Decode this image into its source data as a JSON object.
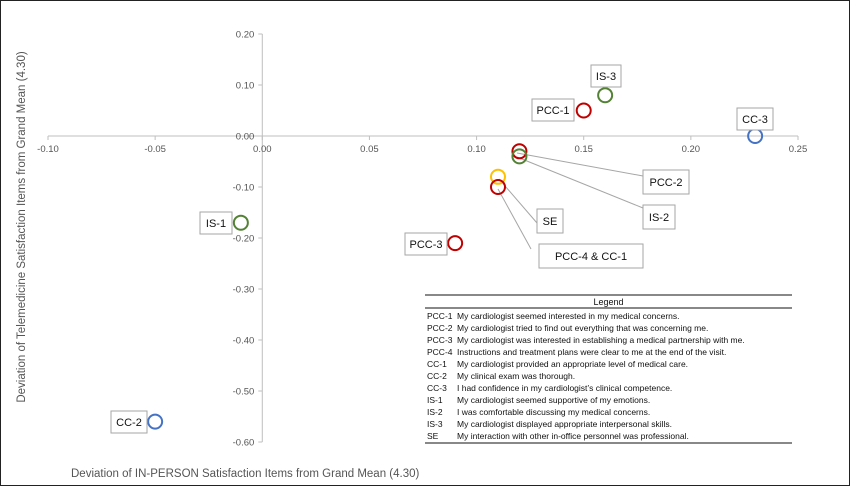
{
  "chart_data": {
    "type": "scatter",
    "xlabel": "Deviation of IN-PERSON Satisfaction Items from Grand Mean (4.30)",
    "ylabel": "Deviation of Telemedicine Satisfaction Items from Grand Mean (4.30)",
    "xlim": [
      -0.1,
      0.25
    ],
    "ylim": [
      -0.6,
      0.2
    ],
    "x_ticks": [
      "-0.10",
      "-0.05",
      "0.00",
      "0.05",
      "0.10",
      "0.15",
      "0.20",
      "0.25"
    ],
    "y_ticks": [
      "0.20",
      "0.10",
      "0.00",
      "-0.10",
      "-0.20",
      "-0.30",
      "-0.40",
      "-0.50",
      "-0.60"
    ],
    "points": [
      {
        "label": "IS-3",
        "x": 0.16,
        "y": 0.08,
        "color": "#548235"
      },
      {
        "label": "PCC-1",
        "x": 0.15,
        "y": 0.05,
        "color": "#c00000"
      },
      {
        "label": "CC-3",
        "x": 0.23,
        "y": 0.0,
        "color": "#4472c4"
      },
      {
        "label": "PCC-2",
        "x": 0.12,
        "y": -0.03,
        "color": "#c00000"
      },
      {
        "label": "IS-2",
        "x": 0.12,
        "y": -0.04,
        "color": "#548235"
      },
      {
        "label": "SE",
        "x": 0.11,
        "y": -0.08,
        "color": "#ffc000"
      },
      {
        "label": "PCC-4 & CC-1",
        "x": 0.11,
        "y": -0.1,
        "color": "#c00000"
      },
      {
        "label": "IS-1",
        "x": -0.01,
        "y": -0.17,
        "color": "#548235"
      },
      {
        "label": "PCC-3",
        "x": 0.09,
        "y": -0.21,
        "color": "#c00000"
      },
      {
        "label": "CC-2",
        "x": -0.05,
        "y": -0.56,
        "color": "#4472c4"
      }
    ],
    "legend": {
      "title": "Legend",
      "items": [
        {
          "code": "PCC-1",
          "text": "My cardiologist seemed interested in my medical concerns."
        },
        {
          "code": "PCC-2",
          "text": "My cardiologist tried to find out everything that was concerning me."
        },
        {
          "code": "PCC-3",
          "text": "My cardiologist was interested in establishing a medical partnership with me."
        },
        {
          "code": "PCC-4",
          "text": "Instructions and treatment plans were clear to me at the end of the visit."
        },
        {
          "code": "CC-1",
          "text": "My cardiologist provided an appropriate level of medical care."
        },
        {
          "code": "CC-2",
          "text": "My clinical exam was thorough."
        },
        {
          "code": "CC-3",
          "text": "I had confidence in my cardiologist’s clinical competence."
        },
        {
          "code": "IS-1",
          "text": "My cardiologist seemed supportive of my emotions."
        },
        {
          "code": "IS-2",
          "text": "I was comfortable discussing my medical concerns."
        },
        {
          "code": "IS-3",
          "text": "My cardiologist displayed appropriate interpersonal skills."
        },
        {
          "code": "SE",
          "text": "My interaction with other in-office personnel was professional."
        }
      ]
    }
  }
}
